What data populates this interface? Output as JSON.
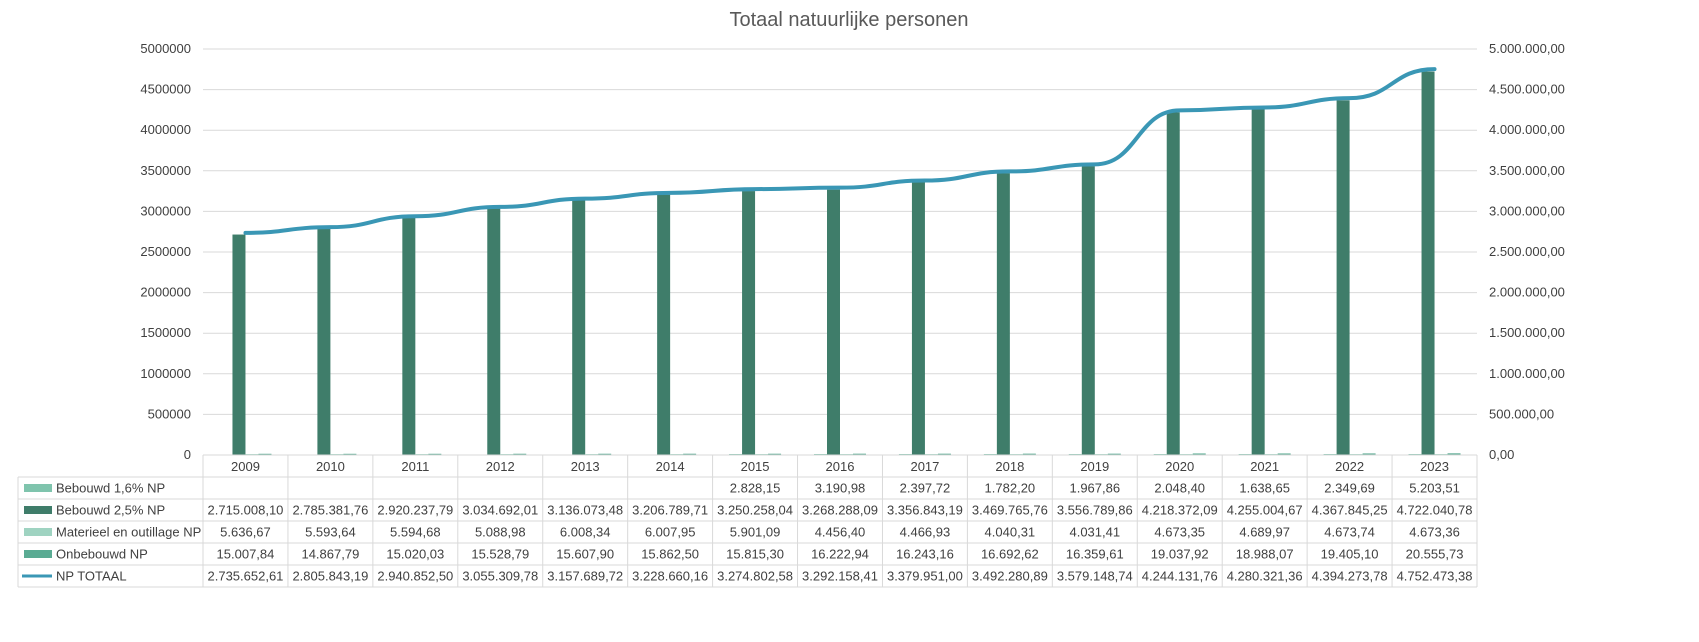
{
  "chart_data": {
    "type": "bar",
    "title": "Totaal natuurlijke personen",
    "categories": [
      "2009",
      "2010",
      "2011",
      "2012",
      "2013",
      "2014",
      "2015",
      "2016",
      "2017",
      "2018",
      "2019",
      "2020",
      "2021",
      "2022",
      "2023"
    ],
    "y_left": {
      "min": 0,
      "max": 5000000,
      "ticks": [
        "0",
        "500000",
        "1000000",
        "1500000",
        "2000000",
        "2500000",
        "3000000",
        "3500000",
        "4000000",
        "4500000",
        "5000000"
      ]
    },
    "y_right": {
      "min": 0,
      "max": 5000000,
      "ticks": [
        "0,00",
        "500.000,00",
        "1.000.000,00",
        "1.500.000,00",
        "2.000.000,00",
        "2.500.000,00",
        "3.000.000,00",
        "3.500.000,00",
        "4.000.000,00",
        "4.500.000,00",
        "5.000.000,00"
      ]
    },
    "grid": true,
    "legend": "data-table",
    "colors": {
      "bebouwd16": "#7fc4ad",
      "bebouwd25": "#3f7d6a",
      "materieel": "#9fd3c1",
      "onbebouwd": "#5aab93",
      "totaal": "#3a97b5"
    },
    "series": [
      {
        "key": "bebouwd16",
        "name": "Bebouwd 1,6% NP",
        "kind": "bar",
        "values": [
          null,
          null,
          null,
          null,
          null,
          null,
          2828.15,
          3190.98,
          2397.72,
          1782.2,
          1967.86,
          2048.4,
          1638.65,
          2349.69,
          5203.51
        ],
        "labels": [
          "",
          "",
          "",
          "",
          "",
          "",
          "2.828,15",
          "3.190,98",
          "2.397,72",
          "1.782,20",
          "1.967,86",
          "2.048,40",
          "1.638,65",
          "2.349,69",
          "5.203,51"
        ]
      },
      {
        "key": "bebouwd25",
        "name": "Bebouwd 2,5% NP",
        "kind": "bar",
        "values": [
          2715008.1,
          2785381.76,
          2920237.79,
          3034692.01,
          3136073.48,
          3206789.71,
          3250258.04,
          3268288.09,
          3356843.19,
          3469765.76,
          3556789.86,
          4218372.09,
          4255004.67,
          4367845.25,
          4722040.78
        ],
        "labels": [
          "2.715.008,10",
          "2.785.381,76",
          "2.920.237,79",
          "3.034.692,01",
          "3.136.073,48",
          "3.206.789,71",
          "3.250.258,04",
          "3.268.288,09",
          "3.356.843,19",
          "3.469.765,76",
          "3.556.789,86",
          "4.218.372,09",
          "4.255.004,67",
          "4.367.845,25",
          "4.722.040,78"
        ]
      },
      {
        "key": "materieel",
        "name": "Materieel en outillage NP",
        "kind": "bar",
        "values": [
          5636.67,
          5593.64,
          5594.68,
          5088.98,
          6008.34,
          6007.95,
          5901.09,
          4456.4,
          4466.93,
          4040.31,
          4031.41,
          4673.35,
          4689.97,
          4673.74,
          4673.36
        ],
        "labels": [
          "5.636,67",
          "5.593,64",
          "5.594,68",
          "5.088,98",
          "6.008,34",
          "6.007,95",
          "5.901,09",
          "4.456,40",
          "4.466,93",
          "4.040,31",
          "4.031,41",
          "4.673,35",
          "4.689,97",
          "4.673,74",
          "4.673,36"
        ]
      },
      {
        "key": "onbebouwd",
        "name": "Onbebouwd NP",
        "kind": "bar",
        "values": [
          15007.84,
          14867.79,
          15020.03,
          15528.79,
          15607.9,
          15862.5,
          15815.3,
          16222.94,
          16243.16,
          16692.62,
          16359.61,
          19037.92,
          18988.07,
          19405.1,
          20555.73
        ],
        "labels": [
          "15.007,84",
          "14.867,79",
          "15.020,03",
          "15.528,79",
          "15.607,90",
          "15.862,50",
          "15.815,30",
          "16.222,94",
          "16.243,16",
          "16.692,62",
          "16.359,61",
          "19.037,92",
          "18.988,07",
          "19.405,10",
          "20.555,73"
        ]
      },
      {
        "key": "totaal",
        "name": "NP TOTAAL",
        "kind": "line",
        "axis": "right",
        "values": [
          2735652.61,
          2805843.19,
          2940852.5,
          3055309.78,
          3157689.72,
          3228660.16,
          3274802.58,
          3292158.41,
          3379951.0,
          3492280.89,
          3579148.74,
          4244131.76,
          4280321.36,
          4394273.78,
          4752473.38
        ],
        "labels": [
          "2.735.652,61",
          "2.805.843,19",
          "2.940.852,50",
          "3.055.309,78",
          "3.157.689,72",
          "3.228.660,16",
          "3.274.802,58",
          "3.292.158,41",
          "3.379.951,00",
          "3.492.280,89",
          "3.579.148,74",
          "4.244.131,76",
          "4.280.321,36",
          "4.394.273,78",
          "4.752.473,38"
        ]
      }
    ]
  }
}
